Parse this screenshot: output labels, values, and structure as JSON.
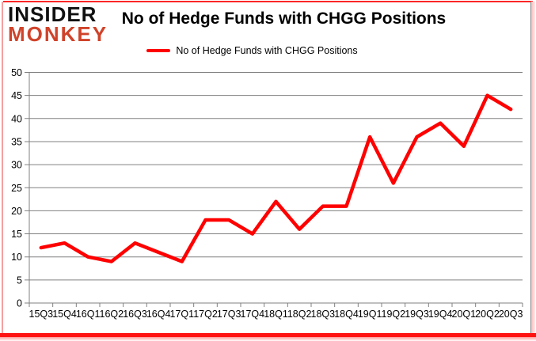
{
  "logo": {
    "line1": "INSIDER",
    "line2": "MONKEY",
    "line1_color": "#111111",
    "line2_color": "#cf432a"
  },
  "header": {
    "title": "No of Hedge Funds with CHGG Positions"
  },
  "legend": {
    "label": "No of Hedge Funds with CHGG Positions",
    "swatch_color": "#ff0000",
    "position": "top-center"
  },
  "chart_data": {
    "type": "line",
    "title": "No of Hedge Funds with CHGG Positions",
    "categories": [
      "15Q3",
      "15Q4",
      "16Q1",
      "16Q2",
      "16Q3",
      "16Q4",
      "17Q1",
      "17Q2",
      "17Q3",
      "17Q4",
      "18Q1",
      "18Q2",
      "18Q3",
      "18Q4",
      "19Q1",
      "19Q2",
      "19Q3",
      "19Q4",
      "20Q1",
      "20Q2",
      "20Q3"
    ],
    "series": [
      {
        "name": "No of Hedge Funds with CHGG Positions",
        "color": "#ff0000",
        "values": [
          12,
          13,
          10,
          9,
          13,
          11,
          9,
          18,
          18,
          15,
          22,
          16,
          21,
          21,
          36,
          26,
          36,
          39,
          34,
          45,
          42
        ]
      }
    ],
    "xlabel": "",
    "ylabel": "",
    "ylim": [
      0,
      50
    ],
    "yticks": [
      0,
      5,
      10,
      15,
      20,
      25,
      30,
      35,
      40,
      45,
      50
    ],
    "grid": true,
    "axis_color": "#808080",
    "tick_label_color": "#000000",
    "legend_position": "top"
  },
  "frame": {
    "accent_color": "#ff1212"
  }
}
